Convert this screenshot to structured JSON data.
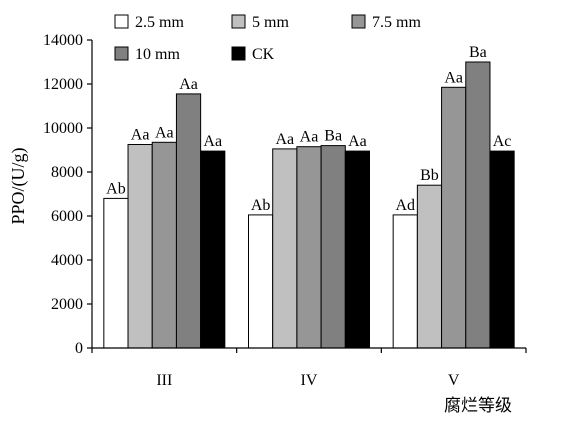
{
  "chart_data": {
    "type": "bar",
    "title": "",
    "ylabel": "PPO/(U/g)",
    "xlabel": "腐烂等级",
    "ylim": [
      0,
      14000
    ],
    "yticks": [
      0,
      2000,
      4000,
      6000,
      8000,
      10000,
      12000,
      14000
    ],
    "categories": [
      "III",
      "IV",
      "V"
    ],
    "legend_position": "top",
    "grid": false,
    "series": [
      {
        "name": "2.5 mm",
        "color": "#ffffff",
        "values": [
          6800,
          6050,
          6050
        ],
        "labels": [
          "Ab",
          "Ab",
          "Ad"
        ]
      },
      {
        "name": "5 mm",
        "color": "#c0c0c0",
        "values": [
          9250,
          9050,
          7400
        ],
        "labels": [
          "Aa",
          "Aa",
          "Bb"
        ]
      },
      {
        "name": "7.5 mm",
        "color": "#969696",
        "values": [
          9350,
          9150,
          11850
        ],
        "labels": [
          "Aa",
          "Aa",
          "Aa"
        ]
      },
      {
        "name": "10 mm",
        "color": "#808080",
        "values": [
          11550,
          9200,
          13000
        ],
        "labels": [
          "Aa",
          "Ba",
          "Ba"
        ]
      },
      {
        "name": "CK",
        "color": "#000000",
        "values": [
          8950,
          8950,
          8950
        ],
        "labels": [
          "Aa",
          "Aa",
          "Ac"
        ]
      }
    ]
  }
}
